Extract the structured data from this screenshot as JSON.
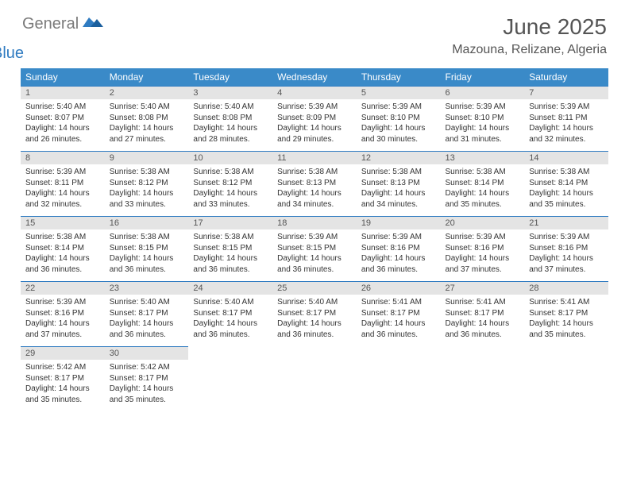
{
  "brand": {
    "part1": "General",
    "part2": "Blue"
  },
  "title": "June 2025",
  "location": "Mazouna, Relizane, Algeria",
  "colors": {
    "header_bg": "#3a8ac8",
    "daynum_bg": "#e4e4e4",
    "divider": "#2f7bc1",
    "text": "#333333",
    "muted": "#555555",
    "white": "#ffffff"
  },
  "weekdays": [
    "Sunday",
    "Monday",
    "Tuesday",
    "Wednesday",
    "Thursday",
    "Friday",
    "Saturday"
  ],
  "days": [
    {
      "n": 1,
      "sr": "5:40 AM",
      "ss": "8:07 PM",
      "dl": "14 hours and 26 minutes."
    },
    {
      "n": 2,
      "sr": "5:40 AM",
      "ss": "8:08 PM",
      "dl": "14 hours and 27 minutes."
    },
    {
      "n": 3,
      "sr": "5:40 AM",
      "ss": "8:08 PM",
      "dl": "14 hours and 28 minutes."
    },
    {
      "n": 4,
      "sr": "5:39 AM",
      "ss": "8:09 PM",
      "dl": "14 hours and 29 minutes."
    },
    {
      "n": 5,
      "sr": "5:39 AM",
      "ss": "8:10 PM",
      "dl": "14 hours and 30 minutes."
    },
    {
      "n": 6,
      "sr": "5:39 AM",
      "ss": "8:10 PM",
      "dl": "14 hours and 31 minutes."
    },
    {
      "n": 7,
      "sr": "5:39 AM",
      "ss": "8:11 PM",
      "dl": "14 hours and 32 minutes."
    },
    {
      "n": 8,
      "sr": "5:39 AM",
      "ss": "8:11 PM",
      "dl": "14 hours and 32 minutes."
    },
    {
      "n": 9,
      "sr": "5:38 AM",
      "ss": "8:12 PM",
      "dl": "14 hours and 33 minutes."
    },
    {
      "n": 10,
      "sr": "5:38 AM",
      "ss": "8:12 PM",
      "dl": "14 hours and 33 minutes."
    },
    {
      "n": 11,
      "sr": "5:38 AM",
      "ss": "8:13 PM",
      "dl": "14 hours and 34 minutes."
    },
    {
      "n": 12,
      "sr": "5:38 AM",
      "ss": "8:13 PM",
      "dl": "14 hours and 34 minutes."
    },
    {
      "n": 13,
      "sr": "5:38 AM",
      "ss": "8:14 PM",
      "dl": "14 hours and 35 minutes."
    },
    {
      "n": 14,
      "sr": "5:38 AM",
      "ss": "8:14 PM",
      "dl": "14 hours and 35 minutes."
    },
    {
      "n": 15,
      "sr": "5:38 AM",
      "ss": "8:14 PM",
      "dl": "14 hours and 36 minutes."
    },
    {
      "n": 16,
      "sr": "5:38 AM",
      "ss": "8:15 PM",
      "dl": "14 hours and 36 minutes."
    },
    {
      "n": 17,
      "sr": "5:38 AM",
      "ss": "8:15 PM",
      "dl": "14 hours and 36 minutes."
    },
    {
      "n": 18,
      "sr": "5:39 AM",
      "ss": "8:15 PM",
      "dl": "14 hours and 36 minutes."
    },
    {
      "n": 19,
      "sr": "5:39 AM",
      "ss": "8:16 PM",
      "dl": "14 hours and 36 minutes."
    },
    {
      "n": 20,
      "sr": "5:39 AM",
      "ss": "8:16 PM",
      "dl": "14 hours and 37 minutes."
    },
    {
      "n": 21,
      "sr": "5:39 AM",
      "ss": "8:16 PM",
      "dl": "14 hours and 37 minutes."
    },
    {
      "n": 22,
      "sr": "5:39 AM",
      "ss": "8:16 PM",
      "dl": "14 hours and 37 minutes."
    },
    {
      "n": 23,
      "sr": "5:40 AM",
      "ss": "8:17 PM",
      "dl": "14 hours and 36 minutes."
    },
    {
      "n": 24,
      "sr": "5:40 AM",
      "ss": "8:17 PM",
      "dl": "14 hours and 36 minutes."
    },
    {
      "n": 25,
      "sr": "5:40 AM",
      "ss": "8:17 PM",
      "dl": "14 hours and 36 minutes."
    },
    {
      "n": 26,
      "sr": "5:41 AM",
      "ss": "8:17 PM",
      "dl": "14 hours and 36 minutes."
    },
    {
      "n": 27,
      "sr": "5:41 AM",
      "ss": "8:17 PM",
      "dl": "14 hours and 36 minutes."
    },
    {
      "n": 28,
      "sr": "5:41 AM",
      "ss": "8:17 PM",
      "dl": "14 hours and 35 minutes."
    },
    {
      "n": 29,
      "sr": "5:42 AM",
      "ss": "8:17 PM",
      "dl": "14 hours and 35 minutes."
    },
    {
      "n": 30,
      "sr": "5:42 AM",
      "ss": "8:17 PM",
      "dl": "14 hours and 35 minutes."
    }
  ],
  "labels": {
    "sunrise": "Sunrise:",
    "sunset": "Sunset:",
    "daylight": "Daylight:"
  },
  "layout": {
    "cols": 7,
    "rows": 5,
    "first_weekday_index": 0
  }
}
